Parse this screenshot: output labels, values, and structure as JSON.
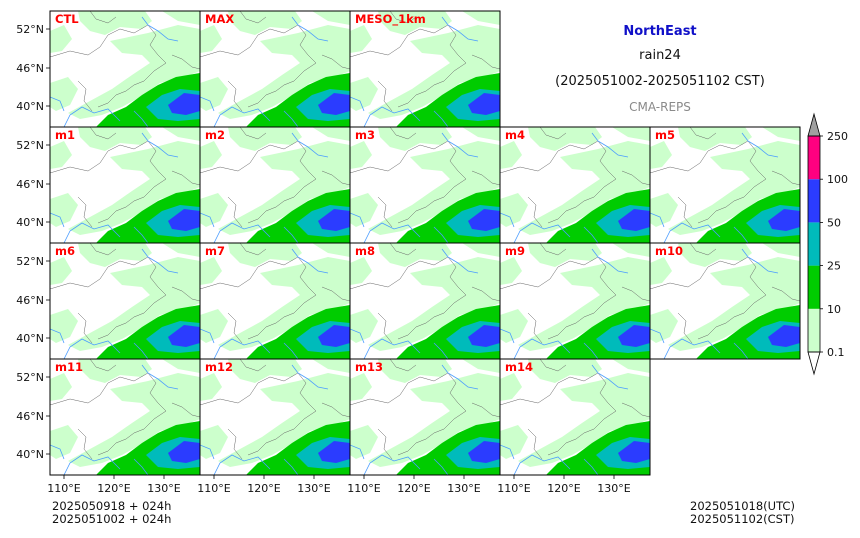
{
  "header": {
    "region": "NorthEast",
    "variable": "rain24",
    "period": "(2025051002-2025051102 CST)",
    "model": "CMA-REPS"
  },
  "footer": {
    "left_line1": "2025050918  +  024h",
    "left_line2": "2025051002  +  024h",
    "right_line1": "2025051018(UTC)",
    "right_line2": "2025051102(CST)"
  },
  "colors": {
    "land": "#ffffff",
    "light_rain": "#ccffcc",
    "moderate": "#00cc00",
    "heavy": "#00bbbb",
    "rainstorm": "#2b3cff",
    "heavy_rainstorm": "#ff0080",
    "extreme": "#a0a0a0",
    "panel_label": "#ff0000",
    "river": "#4a9cff",
    "border": "#666666"
  },
  "chart_data": {
    "type": "heatmap",
    "description_units": "24h accumulated precipitation (mm)",
    "panels": [
      {
        "label": "CTL"
      },
      {
        "label": "MAX"
      },
      {
        "label": "MESO_1km"
      },
      {
        "label": "m1"
      },
      {
        "label": "m2"
      },
      {
        "label": "m3"
      },
      {
        "label": "m4"
      },
      {
        "label": "m5"
      },
      {
        "label": "m6"
      },
      {
        "label": "m7"
      },
      {
        "label": "m8"
      },
      {
        "label": "m9"
      },
      {
        "label": "m10"
      },
      {
        "label": "m11"
      },
      {
        "label": "m12"
      },
      {
        "label": "m13"
      },
      {
        "label": "m14"
      }
    ],
    "y_ticks": [
      "52°N",
      "46°N",
      "40°N"
    ],
    "x_ticks": [
      "110°E",
      "120°E",
      "130°E"
    ],
    "colorbar": {
      "levels": [
        "0.1",
        "10",
        "25",
        "50",
        "100",
        "250"
      ],
      "colors": [
        "#ccffcc",
        "#00cc00",
        "#00bbbb",
        "#2b3cff",
        "#ff0080",
        "#a0a0a0"
      ],
      "extend": "both"
    }
  }
}
